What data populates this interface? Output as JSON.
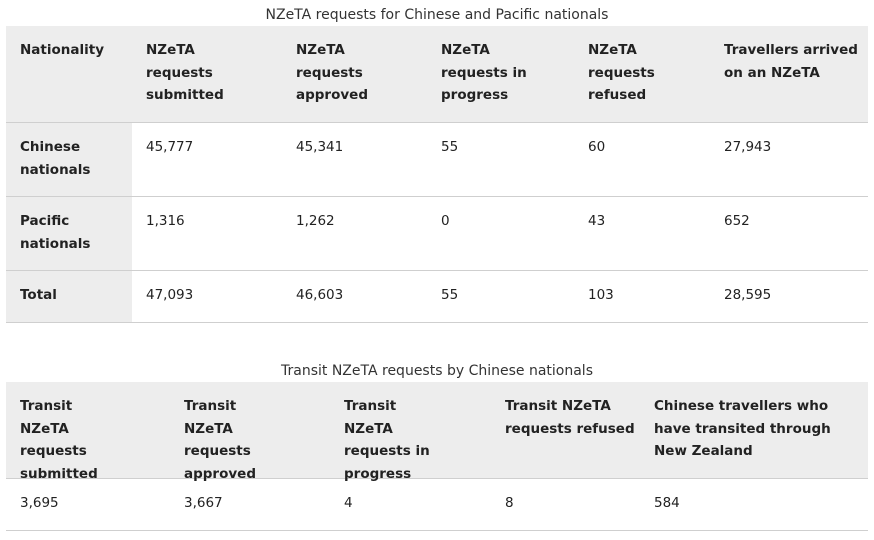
{
  "table1": {
    "caption": "NZeTA requests for Chinese and Pacific nationals",
    "headers": [
      "Nationality",
      "NZeTA requests submitted",
      "NZeTA requests approved",
      "NZeTA requests in progress",
      "NZeTA requests refused",
      "Travellers arrived on an NZeTA"
    ],
    "rows": [
      [
        "Chinese nationals",
        "45,777",
        "45,341",
        "55",
        "60",
        "27,943"
      ],
      [
        "Pacific nationals",
        "1,316",
        "1,262",
        "0",
        "43",
        "652"
      ],
      [
        "Total",
        "47,093",
        "46,603",
        "55",
        "103",
        "28,595"
      ]
    ]
  },
  "table2": {
    "caption": "Transit NZeTA requests by Chinese nationals",
    "headers": [
      "Transit NZeTA requests submitted",
      "Transit NZeTA requests approved",
      "Transit NZeTA requests in progress",
      "Transit NZeTA requests refused",
      "Chinese travellers who have transited through New Zealand"
    ],
    "rows": [
      [
        "3,695",
        "3,667",
        "4",
        "8",
        "584"
      ]
    ]
  }
}
